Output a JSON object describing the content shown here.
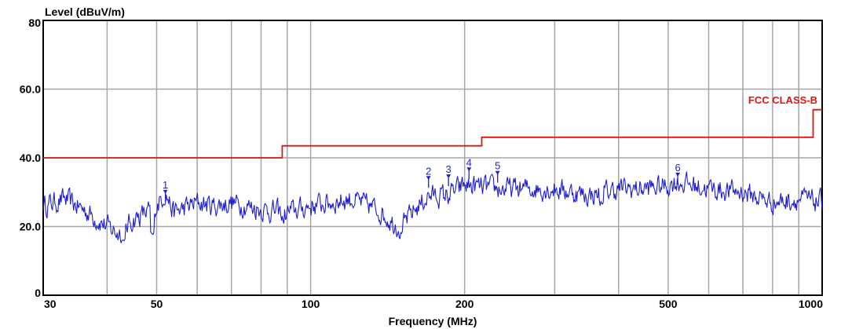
{
  "chart_data": {
    "type": "line",
    "ylabel": "Level (dBuV/m)",
    "xlabel": "Frequency (MHz)",
    "xscale": "log",
    "xlim": [
      30,
      1000
    ],
    "ylim": [
      0,
      80
    ],
    "x_ticks": [
      {
        "value": 30,
        "label": "30"
      },
      {
        "value": 50,
        "label": "50"
      },
      {
        "value": 100,
        "label": "100"
      },
      {
        "value": 200,
        "label": "200"
      },
      {
        "value": 500,
        "label": "500"
      },
      {
        "value": 1000,
        "label": "1000"
      }
    ],
    "y_ticks": [
      {
        "value": 0,
        "label": "0"
      },
      {
        "value": 20,
        "label": "20.0"
      },
      {
        "value": 40,
        "label": "40.0"
      },
      {
        "value": 60,
        "label": "60.0"
      },
      {
        "value": 80,
        "label": "80"
      }
    ],
    "x_grid": [
      40,
      50,
      60,
      70,
      80,
      90,
      100,
      200,
      300,
      400,
      500,
      600,
      700,
      800,
      900
    ],
    "y_grid": [
      20,
      40,
      60
    ],
    "grid": true,
    "colors": {
      "measurement": "#1f1fd0",
      "limit": "#e01414",
      "grid": "#a6a6a6"
    },
    "limit_line": {
      "label": "FCC CLASS-B",
      "points": [
        [
          30,
          40
        ],
        [
          88,
          40
        ],
        [
          88,
          43.5
        ],
        [
          216,
          43.5
        ],
        [
          216,
          46
        ],
        [
          960,
          46
        ],
        [
          960,
          54
        ],
        [
          1000,
          54
        ]
      ]
    },
    "measurement": {
      "anchors": [
        [
          30,
          26
        ],
        [
          33,
          28
        ],
        [
          36,
          25
        ],
        [
          40,
          20
        ],
        [
          42,
          18
        ],
        [
          45,
          22
        ],
        [
          50,
          26
        ],
        [
          52,
          30
        ],
        [
          54,
          24
        ],
        [
          60,
          27
        ],
        [
          65,
          26
        ],
        [
          70,
          27
        ],
        [
          80,
          25
        ],
        [
          90,
          24
        ],
        [
          100,
          26
        ],
        [
          110,
          27
        ],
        [
          120,
          28
        ],
        [
          135,
          25
        ],
        [
          145,
          21
        ],
        [
          150,
          20
        ],
        [
          160,
          25
        ],
        [
          170,
          29
        ],
        [
          185,
          29
        ],
        [
          200,
          32
        ],
        [
          230,
          31
        ],
        [
          300,
          31
        ],
        [
          350,
          29
        ],
        [
          400,
          31
        ],
        [
          450,
          31
        ],
        [
          500,
          32
        ],
        [
          520,
          33
        ],
        [
          600,
          31
        ],
        [
          700,
          30
        ],
        [
          800,
          27
        ],
        [
          900,
          28
        ],
        [
          1000,
          27
        ]
      ],
      "dips": [
        [
          43,
          15
        ],
        [
          49,
          17
        ],
        [
          88,
          22
        ],
        [
          150,
          18
        ],
        [
          370,
          26
        ]
      ]
    },
    "markers": [
      {
        "label": "1",
        "freq": 52,
        "level": 30
      },
      {
        "label": "2",
        "freq": 170,
        "level": 34
      },
      {
        "label": "3",
        "freq": 186,
        "level": 34.5
      },
      {
        "label": "4",
        "freq": 204,
        "level": 36.5
      },
      {
        "label": "5",
        "freq": 232,
        "level": 35.5
      },
      {
        "label": "6",
        "freq": 522,
        "level": 35
      }
    ]
  }
}
